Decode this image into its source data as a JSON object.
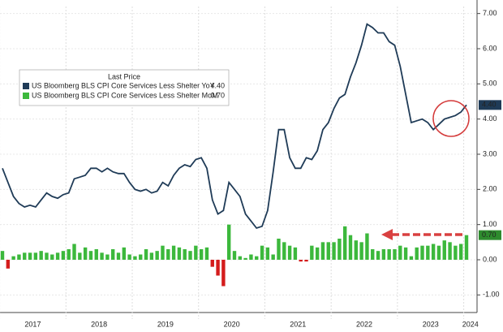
{
  "chart_data": {
    "type": "bar-line",
    "x_labels": [
      "2017",
      "2018",
      "2019",
      "2020",
      "2021",
      "2022",
      "2023",
      "2024"
    ],
    "legend_title": "Last Price",
    "series": [
      {
        "name": "US Bloomberg BLS CPI Core Services Less Shelter YoY",
        "type": "line",
        "color": "#1f3b57",
        "last_value_label": "4.40",
        "values": [
          2.6,
          2.2,
          1.8,
          1.6,
          1.5,
          1.55,
          1.5,
          1.7,
          1.9,
          1.8,
          1.75,
          1.85,
          1.9,
          2.3,
          2.35,
          2.4,
          2.6,
          2.6,
          2.5,
          2.6,
          2.5,
          2.45,
          2.45,
          2.2,
          2.0,
          1.95,
          2.0,
          1.9,
          1.95,
          2.2,
          2.1,
          2.4,
          2.6,
          2.7,
          2.65,
          2.85,
          2.9,
          2.6,
          1.7,
          1.3,
          1.4,
          2.2,
          2.0,
          1.8,
          1.3,
          1.1,
          0.9,
          0.95,
          1.4,
          2.5,
          3.7,
          3.7,
          2.9,
          2.6,
          2.6,
          2.9,
          2.85,
          3.1,
          3.7,
          3.9,
          4.3,
          4.6,
          4.7,
          5.2,
          5.6,
          6.1,
          6.7,
          6.6,
          6.45,
          6.45,
          6.2,
          6.1,
          5.5,
          4.7,
          3.9,
          3.95,
          4.0,
          3.9,
          3.7,
          3.85,
          4.0,
          4.05,
          4.1,
          4.2,
          4.4
        ]
      },
      {
        "name": "US Bloomberg BLS CPI Core Services Less Shelter MoM",
        "type": "bar",
        "color": "#3cb83c",
        "negative_color": "#d41c1c",
        "last_value_label": "0.70",
        "values": [
          0.25,
          -0.25,
          0.1,
          0.15,
          0.2,
          0.2,
          0.2,
          0.25,
          0.2,
          0.15,
          0.2,
          0.25,
          0.3,
          0.45,
          0.2,
          0.35,
          0.25,
          0.3,
          0.2,
          0.15,
          0.3,
          0.2,
          0.35,
          0.15,
          0.1,
          0.15,
          0.3,
          0.2,
          0.25,
          0.4,
          0.3,
          0.4,
          0.35,
          0.3,
          0.25,
          0.4,
          0.3,
          0.35,
          -0.2,
          -0.45,
          -0.75,
          1.0,
          0.25,
          0.1,
          0.05,
          0.15,
          0.1,
          0.4,
          0.35,
          0.15,
          0.6,
          0.5,
          0.4,
          0.35,
          -0.05,
          -0.05,
          0.4,
          0.35,
          0.5,
          0.5,
          0.5,
          0.6,
          0.95,
          0.7,
          0.55,
          0.5,
          0.75,
          0.3,
          0.25,
          0.3,
          0.3,
          0.3,
          0.4,
          0.35,
          0.1,
          0.35,
          0.4,
          0.4,
          0.45,
          0.4,
          0.55,
          0.5,
          0.4,
          0.45,
          0.7
        ]
      }
    ],
    "ylim": [
      -1.5,
      7.2
    ],
    "yticks": [
      {
        "value": -1,
        "label": "-1.00"
      },
      {
        "value": 0,
        "label": "0.00"
      },
      {
        "value": 1,
        "label": "1.00"
      },
      {
        "value": 2,
        "label": "2.00"
      },
      {
        "value": 3,
        "label": "3.00"
      },
      {
        "value": 4,
        "label": "4.00"
      },
      {
        "value": 5,
        "label": "5.00"
      },
      {
        "value": 6,
        "label": "6.00"
      },
      {
        "value": 7,
        "label": "7.00"
      }
    ],
    "grid": true
  }
}
